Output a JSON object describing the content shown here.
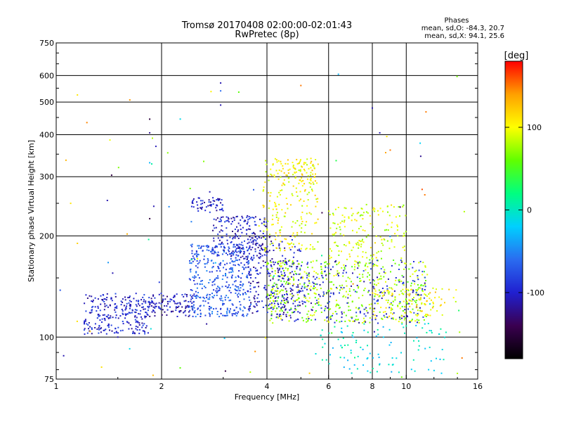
{
  "title": {
    "line1": "Tromsø 20170408 02:00:00-02:01:43",
    "line2": "RwPretec (8p)"
  },
  "phases": {
    "heading": "Phases",
    "o_line": "mean, sd,O: -84.3, 20.7",
    "x_line": "mean, sd,X:  94.1, 25.6"
  },
  "colorbar": {
    "label": "[deg]",
    "ticks": [
      {
        "value": 100,
        "label": "100"
      },
      {
        "value": 0,
        "label": "0"
      },
      {
        "value": -100,
        "label": "-100"
      }
    ],
    "range": [
      -180,
      180
    ],
    "colormap": [
      "#000000",
      "#3a0050",
      "#2020d0",
      "#2a6cf0",
      "#00d0ff",
      "#00ff80",
      "#60ff00",
      "#ffff00",
      "#ffa000",
      "#ff0000"
    ]
  },
  "chart_data": {
    "type": "scatter",
    "xlabel": "Frequency [MHz]",
    "ylabel": "Stationary phase Virtual Height [km]",
    "xscale": "log",
    "yscale": "log",
    "xlim": [
      1,
      16
    ],
    "ylim": [
      75,
      750
    ],
    "grid": true,
    "x_ticks": [
      {
        "value": 1,
        "label": "1"
      },
      {
        "value": 2,
        "label": "2"
      },
      {
        "value": 4,
        "label": "4"
      },
      {
        "value": 6,
        "label": "6"
      },
      {
        "value": 8,
        "label": "8"
      },
      {
        "value": 10,
        "label": "10"
      },
      {
        "value": 16,
        "label": "16"
      }
    ],
    "y_ticks": [
      {
        "value": 75,
        "label": "75"
      },
      {
        "value": 100,
        "label": "100"
      },
      {
        "value": 200,
        "label": "200"
      },
      {
        "value": 300,
        "label": "300"
      },
      {
        "value": 400,
        "label": "400"
      },
      {
        "value": 500,
        "label": "500"
      },
      {
        "value": 600,
        "label": "600"
      },
      {
        "value": 750,
        "label": "750"
      }
    ],
    "clusters": [
      {
        "fmin": 1.2,
        "fmax": 1.85,
        "hmin": 102,
        "hmax": 135,
        "phase": -98,
        "count": 260
      },
      {
        "fmin": 1.85,
        "fmax": 2.5,
        "hmin": 115,
        "hmax": 135,
        "phase": -105,
        "count": 110
      },
      {
        "fmin": 2.4,
        "fmax": 3.6,
        "hmin": 115,
        "hmax": 190,
        "phase": -72,
        "count": 420
      },
      {
        "fmin": 2.4,
        "fmax": 3.0,
        "hmin": 235,
        "hmax": 260,
        "phase": -100,
        "count": 60
      },
      {
        "fmin": 2.8,
        "fmax": 4.0,
        "hmin": 170,
        "hmax": 230,
        "phase": -100,
        "count": 200
      },
      {
        "fmin": 3.5,
        "fmax": 5.0,
        "hmin": 115,
        "hmax": 200,
        "phase": -105,
        "count": 240
      },
      {
        "fmin": 3.9,
        "fmax": 5.6,
        "hmin": 180,
        "hmax": 340,
        "phase": 100,
        "count": 200
      },
      {
        "fmin": 4.0,
        "fmax": 11.5,
        "hmin": 110,
        "hmax": 170,
        "phase": 75,
        "count": 520
      },
      {
        "fmin": 4.0,
        "fmax": 11.5,
        "hmin": 110,
        "hmax": 170,
        "phase": -95,
        "count": 260
      },
      {
        "fmin": 6.0,
        "fmax": 10.0,
        "hmin": 170,
        "hmax": 250,
        "phase": 90,
        "count": 160
      },
      {
        "fmin": 8.0,
        "fmax": 14.0,
        "hmin": 115,
        "hmax": 140,
        "phase": 105,
        "count": 90
      },
      {
        "fmin": 5.5,
        "fmax": 13.0,
        "hmin": 78,
        "hmax": 110,
        "phase": -10,
        "count": 110
      },
      {
        "fmin": 4.2,
        "fmax": 5.5,
        "hmin": 290,
        "hmax": 340,
        "phase": 105,
        "count": 60
      },
      {
        "fmin": 1.0,
        "fmax": 15.0,
        "hmin": 76,
        "hmax": 620,
        "phase": 0,
        "count": 70
      }
    ],
    "points": [
      {
        "x": 2.95,
        "y": 570,
        "phase": -110
      },
      {
        "x": 2.95,
        "y": 540,
        "phase": -60
      },
      {
        "x": 2.95,
        "y": 490,
        "phase": -110
      },
      {
        "x": 1.85,
        "y": 445,
        "phase": -150
      },
      {
        "x": 1.85,
        "y": 405,
        "phase": -120
      },
      {
        "x": 1.85,
        "y": 330,
        "phase": -30
      },
      {
        "x": 1.15,
        "y": 525,
        "phase": 110
      },
      {
        "x": 6.4,
        "y": 605,
        "phase": -30
      },
      {
        "x": 8.0,
        "y": 480,
        "phase": -110
      },
      {
        "x": 11.0,
        "y": 345,
        "phase": -120
      },
      {
        "x": 11.3,
        "y": 265,
        "phase": 150
      },
      {
        "x": 11.1,
        "y": 275,
        "phase": 160
      },
      {
        "x": 1.1,
        "y": 250,
        "phase": 110
      },
      {
        "x": 1.4,
        "y": 255,
        "phase": -110
      },
      {
        "x": 1.9,
        "y": 245,
        "phase": -110
      },
      {
        "x": 1.85,
        "y": 225,
        "phase": -150
      },
      {
        "x": 1.15,
        "y": 190,
        "phase": 120
      },
      {
        "x": 1.45,
        "y": 155,
        "phase": -110
      },
      {
        "x": 1.5,
        "y": 100,
        "phase": -110
      },
      {
        "x": 1.05,
        "y": 88,
        "phase": -110
      },
      {
        "x": 8.8,
        "y": 395,
        "phase": 110
      },
      {
        "x": 9.0,
        "y": 360,
        "phase": 150
      },
      {
        "x": 5.0,
        "y": 560,
        "phase": 150
      },
      {
        "x": 8.4,
        "y": 405,
        "phase": -110
      },
      {
        "x": 14.0,
        "y": 78,
        "phase": 80
      }
    ]
  }
}
